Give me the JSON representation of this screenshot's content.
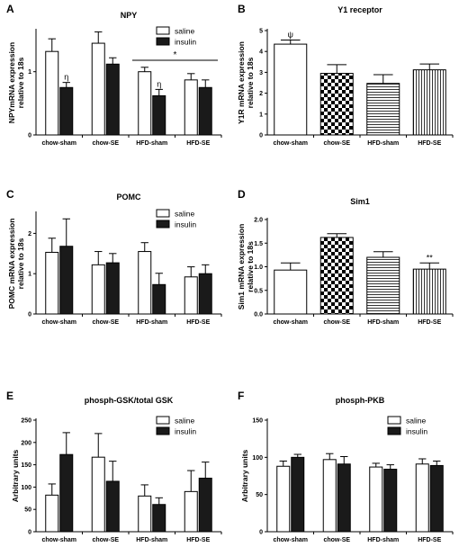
{
  "figure": {
    "legend_entries": [
      "saline",
      "insulin"
    ]
  },
  "chart_data": [
    {
      "panel": "A",
      "type": "bar",
      "title": "NPY",
      "ylabel": "NPYmRNA expression relative to 18s",
      "xlabel": "",
      "categories": [
        "chow-sham",
        "chow-SE",
        "HFD-sham",
        "HFD-SE"
      ],
      "ylim": [
        0,
        1.65
      ],
      "yticks": [
        0,
        1
      ],
      "legend": "top-right",
      "grid": false,
      "series": [
        {
          "name": "saline",
          "values": [
            1.32,
            1.45,
            1.0,
            0.87
          ],
          "errors": [
            0.2,
            0.18,
            0.07,
            0.1
          ]
        },
        {
          "name": "insulin",
          "values": [
            0.75,
            1.12,
            0.62,
            0.75
          ],
          "errors": [
            0.08,
            0.1,
            0.1,
            0.12
          ]
        }
      ],
      "annotations": [
        {
          "text": "η",
          "category": 0,
          "series": 1
        },
        {
          "text": "η",
          "category": 2,
          "series": 1
        }
      ],
      "brackets": [
        {
          "text": "*",
          "from": 2,
          "to": 3,
          "level": 1.18
        }
      ]
    },
    {
      "panel": "B",
      "type": "bar",
      "title": "Y1 receptor",
      "ylabel": "Y1R mRNA expression relative to 18s",
      "xlabel": "",
      "categories": [
        "chow-sham",
        "chow-SE",
        "HFD-sham",
        "HFD-SE"
      ],
      "ylim": [
        0,
        5
      ],
      "yticks": [
        0,
        1,
        2,
        3,
        4,
        5
      ],
      "grid": false,
      "series": [
        {
          "values": [
            4.35,
            2.95,
            2.47,
            3.12
          ],
          "errors": [
            0.2,
            0.42,
            0.42,
            0.28
          ],
          "patterns": [
            "open",
            "checker",
            "hstripe",
            "vstripe"
          ]
        }
      ],
      "annotations": [
        {
          "text": "ψ",
          "category": 0,
          "series": 0
        }
      ]
    },
    {
      "panel": "C",
      "type": "bar",
      "title": "POMC",
      "ylabel": "POMC mRNA expression relative to 18s",
      "xlabel": "",
      "categories": [
        "chow-sham",
        "chow-SE",
        "HFD-sham",
        "HFD-SE"
      ],
      "ylim": [
        0,
        2.5
      ],
      "yticks": [
        0,
        1,
        2
      ],
      "legend": "top-right",
      "grid": false,
      "series": [
        {
          "name": "saline",
          "values": [
            1.53,
            1.22,
            1.55,
            0.92
          ],
          "errors": [
            0.35,
            0.33,
            0.22,
            0.25
          ]
        },
        {
          "name": "insulin",
          "values": [
            1.68,
            1.27,
            0.73,
            1.0
          ],
          "errors": [
            0.68,
            0.23,
            0.28,
            0.22
          ]
        }
      ]
    },
    {
      "panel": "D",
      "type": "bar",
      "title": "Sim1",
      "ylabel": "Sim1 mRNA expression relative to 18s",
      "xlabel": "",
      "categories": [
        "chow-sham",
        "chow-SE",
        "HFD-sham",
        "HFD-SE"
      ],
      "ylim": [
        0,
        2.0
      ],
      "yticks": [
        0.0,
        0.5,
        1.0,
        1.5,
        2.0
      ],
      "ytick_labels": [
        "0.0",
        "0.5",
        "1.0",
        "1.5",
        "2.0"
      ],
      "grid": false,
      "series": [
        {
          "values": [
            0.93,
            1.62,
            1.2,
            0.95
          ],
          "errors": [
            0.15,
            0.08,
            0.12,
            0.13
          ],
          "patterns": [
            "open",
            "checker",
            "hstripe",
            "vstripe"
          ]
        }
      ],
      "annotations": [
        {
          "text": "**",
          "category": 3,
          "series": 0
        }
      ]
    },
    {
      "panel": "E",
      "type": "bar",
      "title": "phosph-GSK/total GSK",
      "ylabel": "Arbitrary units",
      "xlabel": "",
      "categories": [
        "chow-sham",
        "chow-SE",
        "HFD-sham",
        "HFD-SE"
      ],
      "ylim": [
        0,
        250
      ],
      "yticks": [
        0,
        50,
        100,
        150,
        200,
        250
      ],
      "legend": "top-right",
      "grid": false,
      "series": [
        {
          "name": "saline",
          "values": [
            82,
            167,
            80,
            90
          ],
          "errors": [
            25,
            53,
            25,
            47
          ]
        },
        {
          "name": "insulin",
          "values": [
            173,
            113,
            61,
            120
          ],
          "errors": [
            49,
            45,
            15,
            36
          ]
        }
      ]
    },
    {
      "panel": "F",
      "type": "bar",
      "title": "phosph-PKB",
      "ylabel": "Arbitrary units",
      "xlabel": "",
      "categories": [
        "chow-sham",
        "chow-SE",
        "HFD-sham",
        "HFD-SE"
      ],
      "ylim": [
        0,
        150
      ],
      "yticks": [
        0,
        50,
        100,
        150
      ],
      "legend": "top-right",
      "grid": false,
      "series": [
        {
          "name": "saline",
          "values": [
            88,
            97,
            87,
            91
          ],
          "errors": [
            7,
            8,
            5,
            7
          ]
        },
        {
          "name": "insulin",
          "values": [
            100,
            91,
            84,
            89
          ],
          "errors": [
            4,
            10,
            6,
            6
          ]
        }
      ]
    }
  ]
}
